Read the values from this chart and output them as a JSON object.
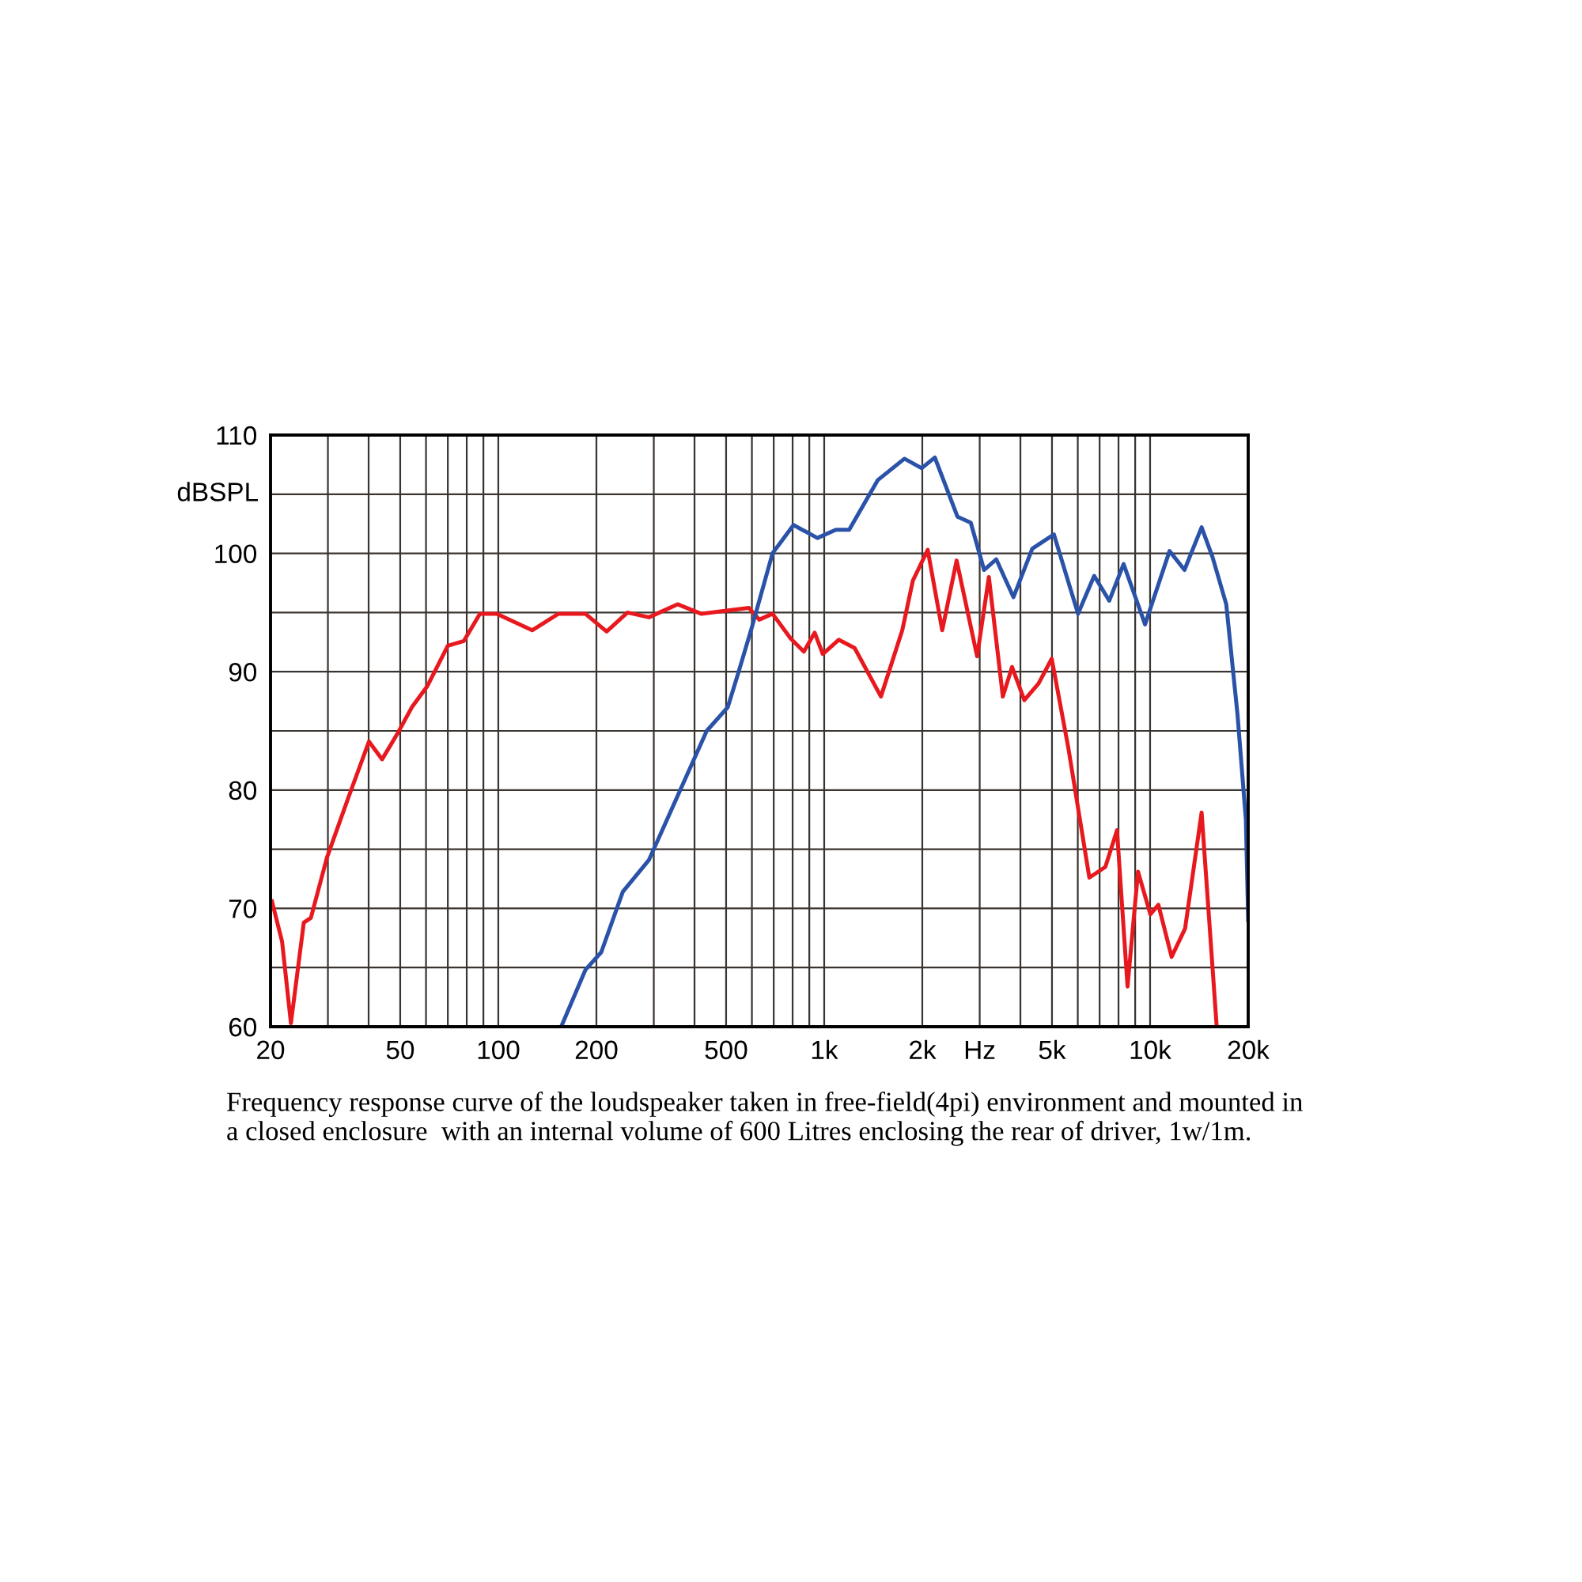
{
  "chart_data": {
    "type": "line",
    "ylabel": "dBSPL",
    "log": "x",
    "grid": true,
    "legend": false,
    "annotations": [
      "Frequency response curve of the loudspeaker taken in free-field(4pi) environment and mounted in\na closed enclosure  with an internal volume of 600 Litres enclosing the rear of driver, 1w/1m."
    ],
    "xlim": [
      20,
      20000
    ],
    "ylim": [
      60,
      110
    ],
    "xticks": [
      20,
      {
        "value": 30,
        "label": null
      },
      {
        "value": 40,
        "label": null
      },
      50,
      {
        "value": 60,
        "label": null
      },
      {
        "value": 70,
        "label": null
      },
      {
        "value": 80,
        "label": null
      },
      {
        "value": 90,
        "label": null
      },
      100,
      200,
      {
        "value": 300,
        "label": null
      },
      {
        "value": 400,
        "label": null
      },
      500,
      {
        "value": 600,
        "label": null
      },
      {
        "value": 700,
        "label": null
      },
      {
        "value": 800,
        "label": null
      },
      {
        "value": 900,
        "label": null
      },
      {
        "value": 1000,
        "label": "1k"
      },
      {
        "value": 2000,
        "label": "2k"
      },
      {
        "value": 3000,
        "label": "Hz"
      },
      {
        "value": 4000,
        "label": null
      },
      {
        "value": 5000,
        "label": "5k"
      },
      {
        "value": 6000,
        "label": null
      },
      {
        "value": 7000,
        "label": null
      },
      {
        "value": 8000,
        "label": null
      },
      {
        "value": 9000,
        "label": null
      },
      {
        "value": 10000,
        "label": "10k"
      },
      {
        "value": 20000,
        "label": "20k"
      }
    ],
    "yticks": [
      60,
      {
        "value": 65,
        "label": null
      },
      70,
      {
        "value": 75,
        "label": null
      },
      80,
      {
        "value": 85,
        "label": null
      },
      90,
      {
        "value": 95,
        "label": null
      },
      100,
      {
        "value": 105,
        "label": null
      },
      110
    ],
    "series": [
      {
        "color": "#e8191e",
        "x": [
          20.2,
          21.7,
          23.1,
          25.3,
          26.6,
          29.8,
          34.6,
          40.1,
          44,
          49.1,
          54.3,
          60.6,
          70,
          78.4,
          87.8,
          98.9,
          127,
          153,
          185,
          215,
          249,
          290,
          355,
          419,
          587,
          632,
          694,
          789,
          866,
          935,
          990,
          1108,
          1240,
          1493,
          1736,
          1871,
          2078,
          2302,
          2549,
          2946,
          3201,
          3533,
          3770,
          4112,
          4547,
          4990,
          5601,
          6510,
          7289,
          7915,
          8527,
          9182,
          10018,
          10604,
          11641,
          12805,
          14390,
          16000
        ],
        "values": [
          70.6,
          67.2,
          60.3,
          68.8,
          69.2,
          74.3,
          79.3,
          84.1,
          82.6,
          84.8,
          87,
          88.8,
          92.2,
          92.6,
          94.9,
          94.9,
          93.5,
          94.9,
          94.9,
          93.4,
          95,
          94.6,
          95.7,
          94.9,
          95.4,
          94.4,
          94.9,
          92.8,
          91.7,
          93.3,
          91.5,
          92.7,
          92,
          87.9,
          93.5,
          97.7,
          100.3,
          93.5,
          99.4,
          91.3,
          98,
          87.9,
          90.4,
          87.6,
          89,
          91.1,
          83.7,
          72.6,
          73.5,
          76.6,
          63.4,
          73.1,
          69.5,
          70.3,
          65.9,
          68.3,
          78.1,
          60.1
        ]
      },
      {
        "color": "#2a52a8",
        "x": [
          156.5,
          185,
          207,
          241,
          290,
          363,
          436,
          506,
          545,
          599,
          694,
          805,
          953,
          1086,
          1193,
          1461,
          1763,
          1991,
          2185,
          2564,
          2816,
          3094,
          3372,
          3809,
          4350,
          5069,
          6009,
          6737,
          7495,
          8293,
          9650,
          11473,
          12751,
          14390,
          15539,
          17127,
          18543,
          19672,
          20000
        ],
        "values": [
          60.1,
          64.8,
          66.3,
          71.4,
          74.1,
          80.1,
          85,
          87,
          89.9,
          93.7,
          100,
          102.4,
          101.3,
          102,
          102,
          106.2,
          108,
          107.2,
          108.1,
          103.1,
          102.6,
          98.6,
          99.5,
          96.3,
          100.4,
          101.6,
          94.9,
          98.1,
          96,
          99.1,
          94,
          100.2,
          98.6,
          102.2,
          99.7,
          95.7,
          86.4,
          77.5,
          69
        ]
      }
    ]
  }
}
